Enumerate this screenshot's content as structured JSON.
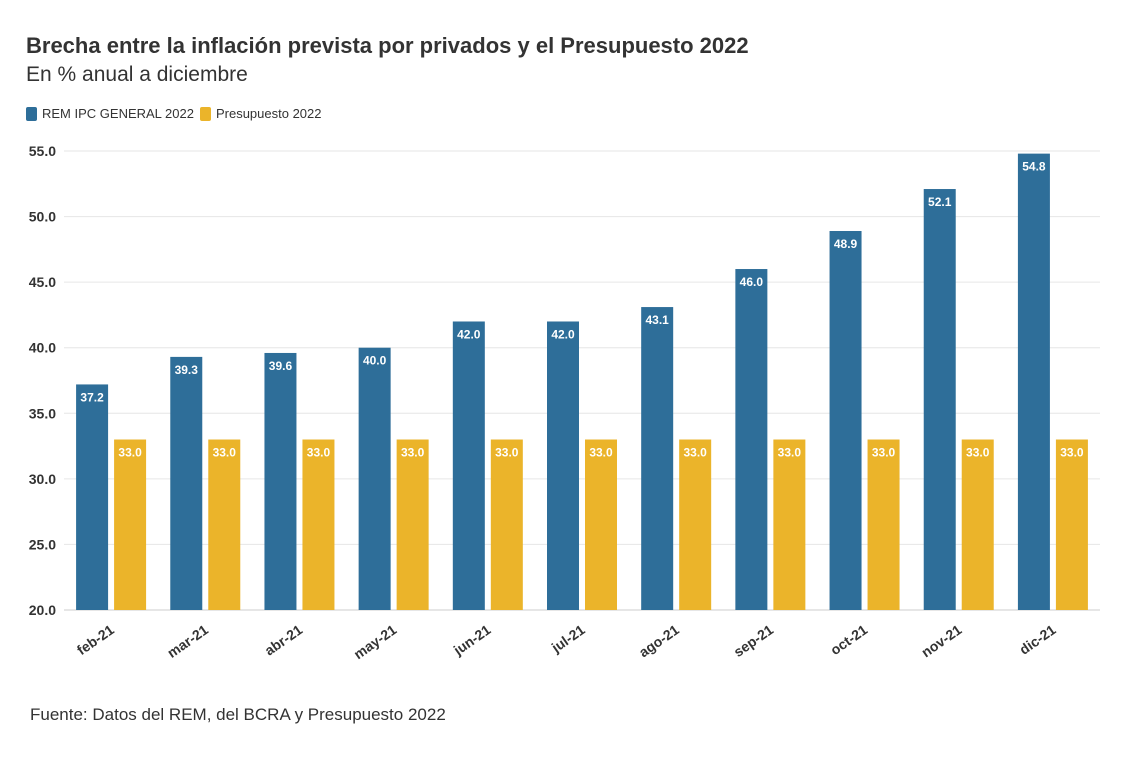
{
  "chart_data": {
    "type": "bar",
    "title": "Brecha entre la inflación prevista por privados y el Presupuesto 2022",
    "subtitle": "En % anual a diciembre",
    "categories": [
      "feb-21",
      "mar-21",
      "abr-21",
      "may-21",
      "jun-21",
      "jul-21",
      "ago-21",
      "sep-21",
      "oct-21",
      "nov-21",
      "dic-21"
    ],
    "series": [
      {
        "name": "REM IPC GENERAL 2022",
        "color": "#2e6e99",
        "values": [
          37.2,
          39.3,
          39.6,
          40.0,
          42.0,
          42.0,
          43.1,
          46.0,
          48.9,
          52.1,
          54.8
        ],
        "labels": [
          "37.2",
          "39.3",
          "39.6",
          "40.0",
          "42.0",
          "42.0",
          "43.1",
          "46.0",
          "48.9",
          "52.1",
          "54.8"
        ]
      },
      {
        "name": "Presupuesto 2022",
        "color": "#ebb42a",
        "values": [
          33.0,
          33.0,
          33.0,
          33.0,
          33.0,
          33.0,
          33.0,
          33.0,
          33.0,
          33.0,
          33.0
        ],
        "labels": [
          "33.0",
          "33.0",
          "33.0",
          "33.0",
          "33.0",
          "33.0",
          "33.0",
          "33.0",
          "33.0",
          "33.0",
          "33.0"
        ]
      }
    ],
    "ylim": [
      20,
      55
    ],
    "yticks": [
      "20.0",
      "25.0",
      "30.0",
      "35.0",
      "40.0",
      "45.0",
      "50.0",
      "55.0"
    ],
    "ytick_values": [
      20,
      25,
      30,
      35,
      40,
      45,
      50,
      55
    ],
    "grid": true,
    "legend": "top-left",
    "source": "Fuente: Datos del REM, del BCRA y Presupuesto 2022"
  }
}
